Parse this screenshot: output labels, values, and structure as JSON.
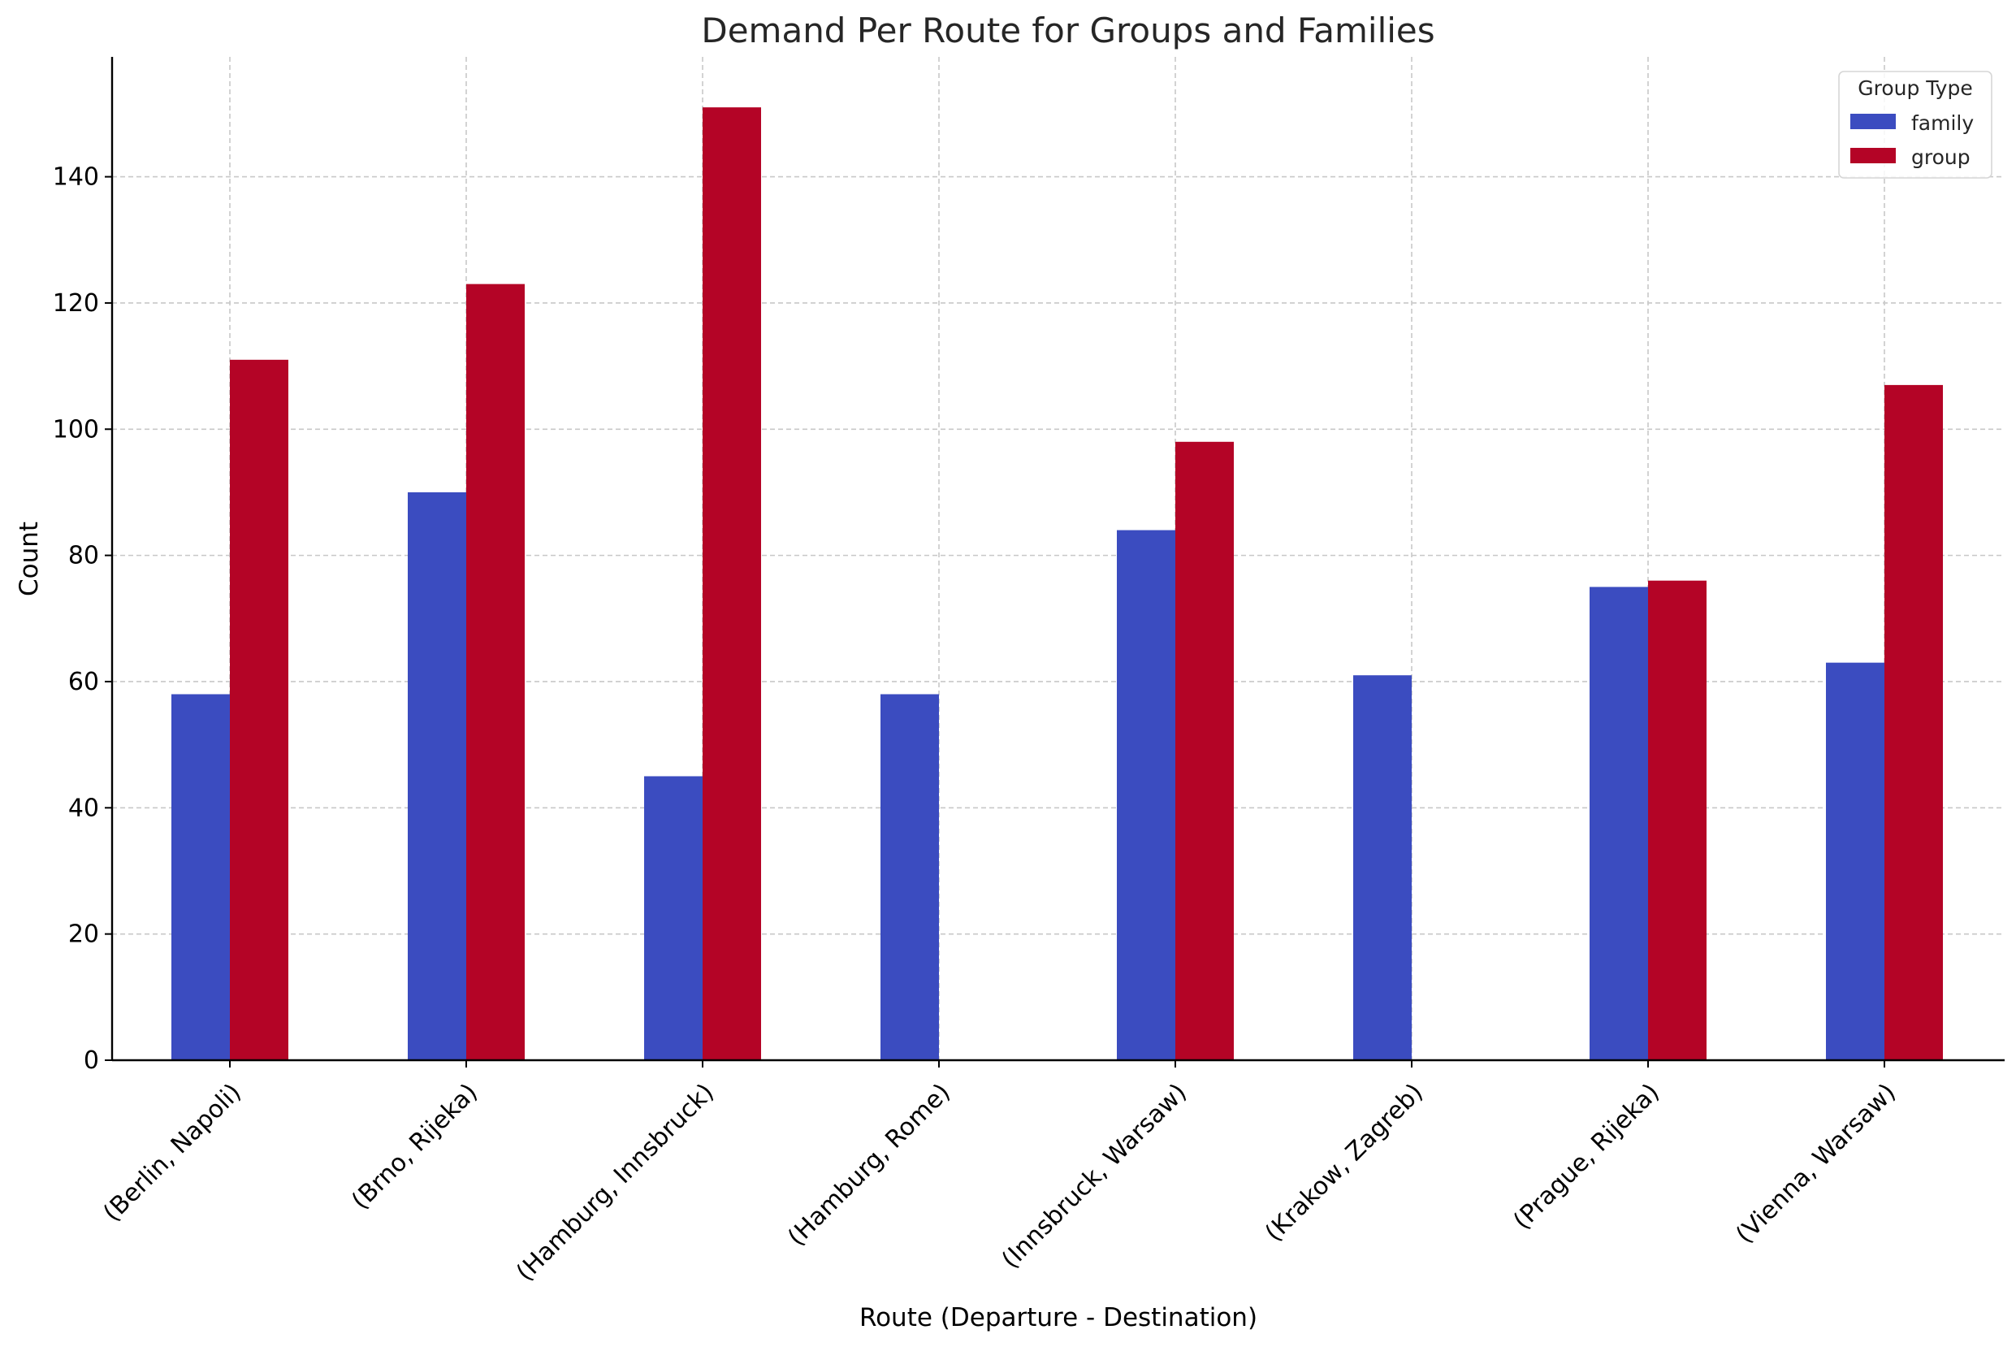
{
  "chart_data": {
    "type": "bar",
    "title": "Demand Per Route for Groups and Families",
    "xlabel": "Route (Departure - Destination)",
    "ylabel": "Count",
    "categories": [
      "(Berlin, Napoli)",
      "(Brno, Rijeka)",
      "(Hamburg, Innsbruck)",
      "(Hamburg, Rome)",
      "(Innsbruck, Warsaw)",
      "(Krakow, Zagreb)",
      "(Prague, Rijeka)",
      "(Vienna, Warsaw)"
    ],
    "series": [
      {
        "name": "family",
        "color": "#3b4cc0",
        "values": [
          58,
          90,
          45,
          58,
          84,
          61,
          75,
          63
        ]
      },
      {
        "name": "group",
        "color": "#b40426",
        "values": [
          111,
          123,
          151,
          0,
          98,
          0,
          76,
          107
        ]
      }
    ],
    "ylim": [
      0,
      159
    ],
    "yticks": [
      0,
      20,
      40,
      60,
      80,
      100,
      120,
      140
    ],
    "grid": true,
    "legend": {
      "title": "Group Type",
      "position": "top-right"
    }
  }
}
